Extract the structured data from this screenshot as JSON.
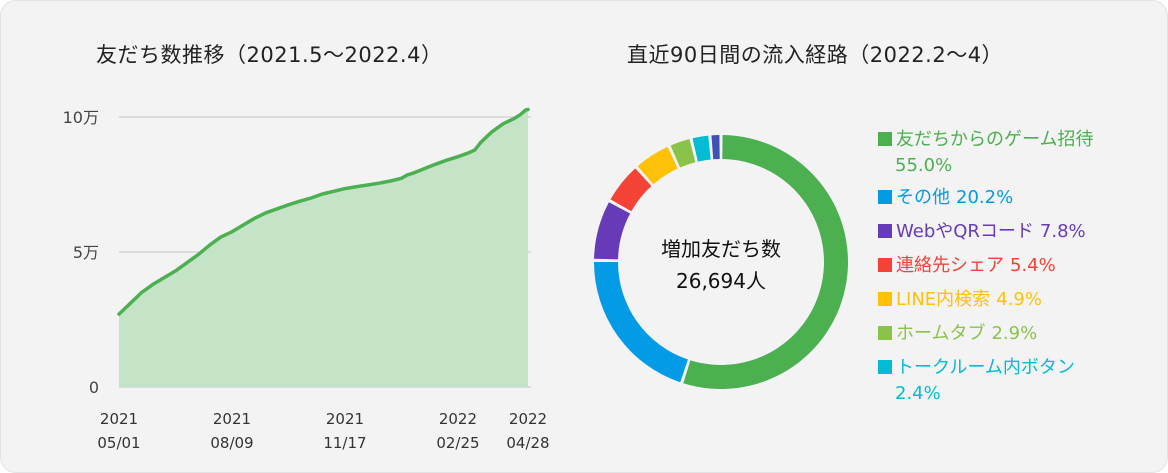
{
  "left_title": "友だち数推移（2021.5～2022.4）",
  "right_title": "直近90日間の流入経路（2022.2～4）",
  "chart_data": [
    {
      "type": "area",
      "title": "友だち数推移（2021.5～2022.4）",
      "y_ticks": [
        {
          "value": 0,
          "label": "0"
        },
        {
          "value": 50000,
          "label": "5万"
        },
        {
          "value": 100000,
          "label": "10万"
        }
      ],
      "ylim": [
        0,
        100000
      ],
      "x_range": [
        0,
        362
      ],
      "x_ticks": [
        {
          "day": 0,
          "line1": "2021",
          "line2": "05/01"
        },
        {
          "day": 100,
          "line1": "2021",
          "line2": "08/09"
        },
        {
          "day": 200,
          "line1": "2021",
          "line2": "11/17"
        },
        {
          "day": 300,
          "line1": "2022",
          "line2": "02/25"
        },
        {
          "day": 362,
          "line1": "2022",
          "line2": "04/28"
        }
      ],
      "line_color": "#4caf50",
      "fill_color": "#c5e3c7",
      "points": [
        [
          0,
          27000
        ],
        [
          10,
          31000
        ],
        [
          20,
          35000
        ],
        [
          30,
          38000
        ],
        [
          40,
          40500
        ],
        [
          50,
          43000
        ],
        [
          60,
          46000
        ],
        [
          70,
          49000
        ],
        [
          80,
          52500
        ],
        [
          90,
          55500
        ],
        [
          100,
          57500
        ],
        [
          110,
          60000
        ],
        [
          120,
          62500
        ],
        [
          130,
          64500
        ],
        [
          140,
          66000
        ],
        [
          150,
          67500
        ],
        [
          160,
          68800
        ],
        [
          170,
          70000
        ],
        [
          180,
          71500
        ],
        [
          190,
          72500
        ],
        [
          200,
          73500
        ],
        [
          210,
          74200
        ],
        [
          220,
          74800
        ],
        [
          230,
          75500
        ],
        [
          240,
          76300
        ],
        [
          250,
          77300
        ],
        [
          255,
          78500
        ],
        [
          260,
          79200
        ],
        [
          270,
          80800
        ],
        [
          280,
          82500
        ],
        [
          290,
          84000
        ],
        [
          300,
          85300
        ],
        [
          310,
          86800
        ],
        [
          315,
          87800
        ],
        [
          320,
          90500
        ],
        [
          330,
          94500
        ],
        [
          340,
          97500
        ],
        [
          350,
          99500
        ],
        [
          355,
          100800
        ],
        [
          360,
          102600
        ],
        [
          362,
          102800
        ]
      ]
    },
    {
      "type": "pie",
      "title": "直近90日間の流入経路（2022.2～4）",
      "center_label": "増加友だち数",
      "center_value": "26,694人",
      "slices": [
        {
          "label": "友だちからのゲーム招待",
          "value": 55.0,
          "pct": "55.0%",
          "color": "#4caf50",
          "wrap": true
        },
        {
          "label": "その他",
          "value": 20.2,
          "pct": "20.2%",
          "color": "#039be5",
          "wrap": false
        },
        {
          "label": "WebやQRコード",
          "value": 7.8,
          "pct": "7.8%",
          "color": "#673ab7",
          "wrap": false
        },
        {
          "label": "連絡先シェア",
          "value": 5.4,
          "pct": "5.4%",
          "color": "#f44336",
          "wrap": false
        },
        {
          "label": "LINE内検索",
          "value": 4.9,
          "pct": "4.9%",
          "color": "#ffc107",
          "wrap": false
        },
        {
          "label": "ホームタブ",
          "value": 2.9,
          "pct": "2.9%",
          "color": "#8bc34a",
          "wrap": false
        },
        {
          "label": "トークルーム内ボタン",
          "value": 2.4,
          "pct": "2.4%",
          "color": "#00bcd4",
          "wrap": true
        }
      ],
      "remainder_color": "#3f51b5"
    }
  ]
}
